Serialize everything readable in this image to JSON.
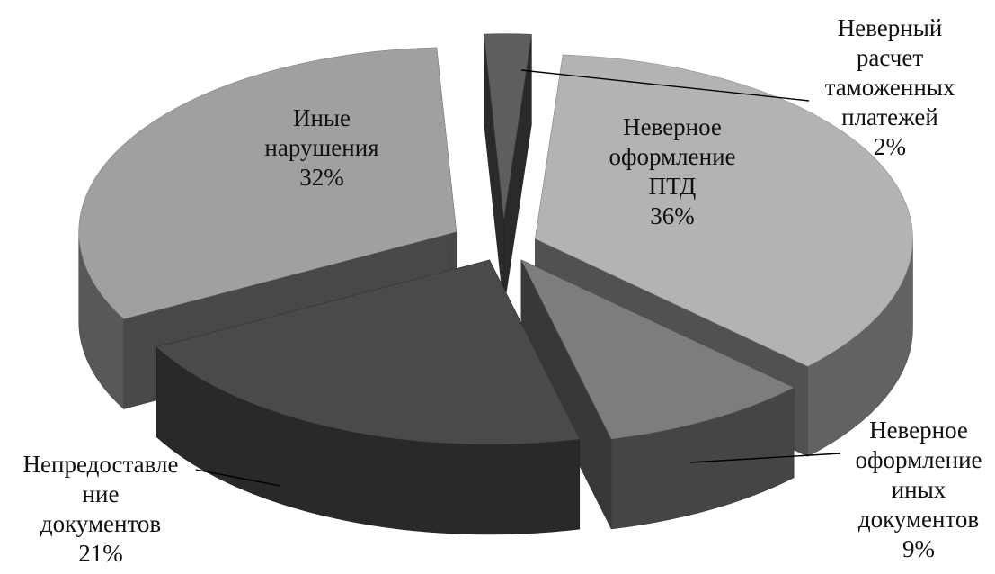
{
  "chart_data": {
    "type": "pie",
    "style": "3d-exploded",
    "slices": [
      {
        "label_lines": [
          "Неверный",
          "расчет",
          "таможенных",
          "платежей"
        ],
        "percent_text": "2%",
        "value": 2,
        "color": "#5e5e5e",
        "label_position": "outside"
      },
      {
        "label_lines": [
          "Неверное",
          "оформление",
          "ПТД"
        ],
        "percent_text": "36%",
        "value": 36,
        "color": "#b3b3b3",
        "label_position": "inside"
      },
      {
        "label_lines": [
          "Неверное",
          "оформление",
          "иных",
          "документов"
        ],
        "percent_text": "9%",
        "value": 9,
        "color": "#7d7d7d",
        "label_position": "outside"
      },
      {
        "label_lines": [
          "Непредоставле",
          "ние",
          "документов"
        ],
        "percent_text": "21%",
        "value": 21,
        "color": "#4a4a4a",
        "label_position": "outside"
      },
      {
        "label_lines": [
          "Иные",
          "нарушения"
        ],
        "percent_text": "32%",
        "value": 32,
        "color": "#a0a0a0",
        "label_position": "inside"
      }
    ],
    "legend": "none",
    "title": ""
  }
}
